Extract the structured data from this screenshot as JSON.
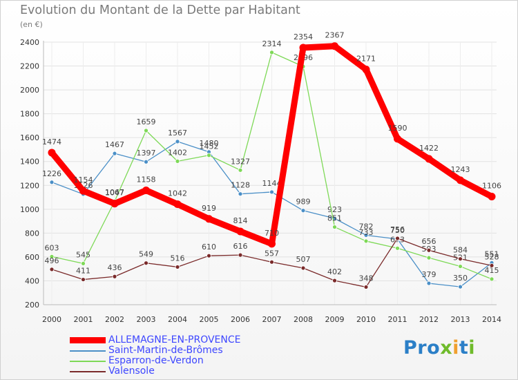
{
  "title": "Evolution du Montant de la Dette par Habitant",
  "unit": "(en €)",
  "logo": {
    "text": "Proxiti"
  },
  "chart_data": {
    "type": "line",
    "title": "Evolution du Montant de la Dette par Habitant",
    "ylabel": "(en €)",
    "xlabel": "",
    "x": [
      "2000",
      "2001",
      "2002",
      "2003",
      "2004",
      "2005",
      "2006",
      "2007",
      "2008",
      "2009",
      "2010",
      "2011",
      "2012",
      "2013",
      "2014"
    ],
    "ylim": [
      200,
      2400
    ],
    "yticks": [
      200,
      400,
      600,
      800,
      1000,
      1200,
      1400,
      1600,
      1800,
      2000,
      2200,
      2400
    ],
    "grid": true,
    "legend": "bottom",
    "series": [
      {
        "name": "ALLEMAGNE-EN-PROVENCE",
        "color": "#ff0000",
        "values": [
          1474,
          1154,
          1047,
          1158,
          1042,
          919,
          814,
          710,
          2354,
          2367,
          2171,
          1590,
          1422,
          1243,
          1106
        ]
      },
      {
        "name": "Saint-Martin-de-Brômes",
        "color": "#4a8fc7",
        "values": [
          1226,
          1126,
          1467,
          1397,
          1567,
          1480,
          1128,
          1144,
          989,
          923,
          782,
          750,
          379,
          350,
          551
        ]
      },
      {
        "name": "Esparron-de-Verdon",
        "color": "#7ed957",
        "values": [
          603,
          545,
          1067,
          1659,
          1402,
          1452,
          1327,
          2314,
          2196,
          851,
          733,
          673,
          593,
          521,
          415
        ]
      },
      {
        "name": "Valensole",
        "color": "#7a2a2a",
        "values": [
          496,
          411,
          436,
          549,
          516,
          610,
          616,
          557,
          507,
          402,
          348,
          756,
          656,
          584,
          528
        ]
      }
    ]
  }
}
